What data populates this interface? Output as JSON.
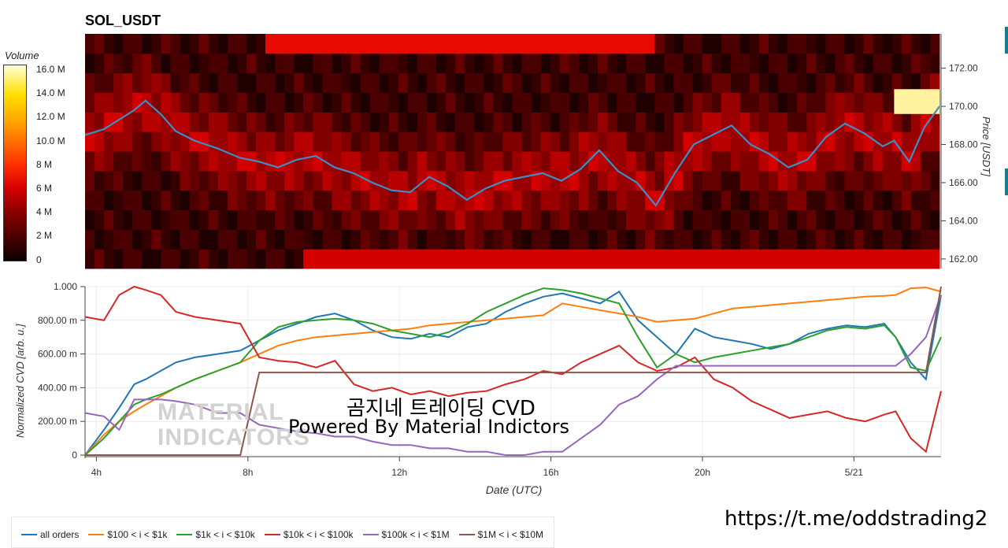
{
  "header": {
    "title": "SOL_USDT"
  },
  "colorbar": {
    "title": "Volume",
    "ticks": [
      "16.0 M",
      "14.0 M",
      "12.0 M",
      "10.0 M",
      "8 M",
      "6 M",
      "4 M",
      "2 M",
      "0"
    ]
  },
  "top_chart": {
    "y_axis_label": "Price [USDT]"
  },
  "bottom_chart": {
    "y_axis_label": "Normalized CVD [arb. u.]",
    "x_axis_label": "Date (UTC)"
  },
  "overlay": {
    "line1": "곰지네 트레이딩 CVD",
    "line2": "Powered By Material Indictors",
    "logo_line1": "MATERIAL",
    "logo_line2": "INDICATORS"
  },
  "footer": {
    "url": "https://t.me/oddstrading2"
  },
  "colors": {
    "all": "#1f77b4",
    "s100": "#ff7f0e",
    "s1k": "#2ca02c",
    "s10k": "#d62728",
    "s100k": "#9467bd",
    "s1m": "#8c564b"
  },
  "chart_data": [
    {
      "type": "heatmap",
      "title": "SOL_USDT",
      "ylabel": "Price [USDT]",
      "yticks": [
        "162.00",
        "164.00",
        "166.00",
        "168.00",
        "170.00",
        "172.00"
      ],
      "ylim": [
        161.5,
        173.8
      ],
      "colorbar_title": "Volume",
      "colorbar_range": [
        0,
        16
      ],
      "series": [
        {
          "name": "price",
          "x": [
            3.7,
            4.2,
            4.6,
            5.0,
            5.3,
            5.7,
            6.1,
            6.6,
            7.2,
            7.8,
            8.3,
            8.8,
            9.3,
            9.8,
            10.3,
            10.8,
            11.3,
            11.8,
            12.3,
            12.8,
            13.3,
            13.8,
            14.3,
            14.8,
            15.3,
            15.8,
            16.3,
            16.8,
            17.3,
            17.8,
            18.3,
            18.8,
            19.3,
            19.8,
            20.3,
            20.8,
            21.3,
            21.8,
            22.3,
            22.8,
            23.3,
            23.8,
            24.3,
            24.8,
            25.1,
            25.5,
            25.9,
            26.3
          ],
          "y": [
            168.5,
            168.8,
            169.3,
            169.8,
            170.3,
            169.6,
            168.7,
            168.2,
            167.8,
            167.3,
            167.1,
            166.8,
            167.2,
            167.4,
            166.8,
            166.5,
            166.0,
            165.6,
            165.5,
            166.3,
            165.8,
            165.1,
            165.7,
            166.1,
            166.3,
            166.5,
            166.1,
            166.7,
            167.7,
            166.6,
            166.0,
            164.8,
            166.5,
            168.0,
            168.5,
            169.0,
            168.0,
            167.5,
            166.8,
            167.2,
            168.4,
            169.1,
            168.6,
            167.9,
            168.2,
            167.1,
            168.9,
            170.0
          ]
        }
      ]
    },
    {
      "type": "line",
      "xlabel": "Date (UTC)",
      "ylabel": "Normalized CVD [arb. u.]",
      "xticks": [
        "4h",
        "8h",
        "12h",
        "16h",
        "20h",
        "5/21"
      ],
      "xtick_values": [
        4,
        8,
        12,
        16,
        20,
        24
      ],
      "yticks": [
        "0",
        "200.00 m",
        "400.00 m",
        "600.00 m",
        "800.00 m",
        "1.000"
      ],
      "ylim": [
        0,
        1
      ],
      "x": [
        3.7,
        4.2,
        4.6,
        5.0,
        5.3,
        5.7,
        6.1,
        6.6,
        7.2,
        7.8,
        8.3,
        8.8,
        9.3,
        9.8,
        10.3,
        10.8,
        11.3,
        11.8,
        12.3,
        12.8,
        13.3,
        13.8,
        14.3,
        14.8,
        15.3,
        15.8,
        16.3,
        16.8,
        17.3,
        17.8,
        18.3,
        18.8,
        19.3,
        19.8,
        20.3,
        20.8,
        21.3,
        21.8,
        22.3,
        22.8,
        23.3,
        23.8,
        24.3,
        24.8,
        25.1,
        25.5,
        25.9,
        26.3
      ],
      "series": [
        {
          "name": "all orders",
          "values": [
            0.0,
            0.15,
            0.28,
            0.42,
            0.45,
            0.5,
            0.55,
            0.58,
            0.6,
            0.62,
            0.68,
            0.74,
            0.78,
            0.82,
            0.84,
            0.8,
            0.74,
            0.7,
            0.69,
            0.72,
            0.7,
            0.76,
            0.78,
            0.85,
            0.9,
            0.94,
            0.96,
            0.93,
            0.9,
            0.97,
            0.8,
            0.7,
            0.6,
            0.75,
            0.7,
            0.68,
            0.66,
            0.63,
            0.66,
            0.72,
            0.75,
            0.77,
            0.76,
            0.78,
            0.7,
            0.55,
            0.45,
            0.95
          ]
        },
        {
          "name": "$100 < i < $1k",
          "values": [
            0.0,
            0.12,
            0.2,
            0.26,
            0.3,
            0.35,
            0.4,
            0.45,
            0.5,
            0.55,
            0.6,
            0.65,
            0.68,
            0.7,
            0.71,
            0.72,
            0.73,
            0.74,
            0.75,
            0.77,
            0.78,
            0.79,
            0.8,
            0.81,
            0.82,
            0.83,
            0.9,
            0.88,
            0.86,
            0.84,
            0.82,
            0.79,
            0.8,
            0.81,
            0.84,
            0.87,
            0.88,
            0.89,
            0.9,
            0.91,
            0.92,
            0.93,
            0.94,
            0.945,
            0.95,
            0.99,
            0.995,
            0.97
          ]
        },
        {
          "name": "$1k < i < $10k",
          "values": [
            0.0,
            0.1,
            0.2,
            0.3,
            0.33,
            0.36,
            0.4,
            0.45,
            0.5,
            0.55,
            0.68,
            0.76,
            0.79,
            0.8,
            0.81,
            0.8,
            0.78,
            0.74,
            0.72,
            0.7,
            0.73,
            0.78,
            0.85,
            0.9,
            0.95,
            0.99,
            0.98,
            0.96,
            0.93,
            0.9,
            0.7,
            0.52,
            0.6,
            0.55,
            0.58,
            0.6,
            0.62,
            0.64,
            0.66,
            0.7,
            0.74,
            0.76,
            0.75,
            0.77,
            0.7,
            0.52,
            0.5,
            0.7
          ]
        },
        {
          "name": "$10k < i < $100k",
          "values": [
            0.82,
            0.8,
            0.95,
            1.0,
            0.98,
            0.95,
            0.85,
            0.82,
            0.8,
            0.78,
            0.58,
            0.56,
            0.55,
            0.52,
            0.56,
            0.42,
            0.38,
            0.4,
            0.36,
            0.38,
            0.35,
            0.37,
            0.38,
            0.42,
            0.45,
            0.5,
            0.48,
            0.55,
            0.6,
            0.65,
            0.55,
            0.5,
            0.52,
            0.58,
            0.45,
            0.4,
            0.32,
            0.27,
            0.22,
            0.24,
            0.26,
            0.22,
            0.2,
            0.24,
            0.26,
            0.1,
            0.02,
            0.38
          ]
        },
        {
          "name": "$100k < i < $1M",
          "values": [
            0.25,
            0.23,
            0.15,
            0.33,
            0.33,
            0.33,
            0.32,
            0.3,
            0.25,
            0.25,
            0.18,
            0.16,
            0.14,
            0.13,
            0.11,
            0.11,
            0.08,
            0.06,
            0.06,
            0.04,
            0.04,
            0.02,
            0.02,
            0.0,
            0.0,
            0.02,
            0.02,
            0.1,
            0.18,
            0.3,
            0.35,
            0.45,
            0.53,
            0.53,
            0.53,
            0.53,
            0.53,
            0.53,
            0.53,
            0.53,
            0.53,
            0.53,
            0.53,
            0.53,
            0.53,
            0.6,
            0.7,
            0.95
          ]
        },
        {
          "name": "$1M < i < $10M",
          "values": [
            0.0,
            0.0,
            0.0,
            0.0,
            0.0,
            0.0,
            0.0,
            0.0,
            0.0,
            0.0,
            0.49,
            0.49,
            0.49,
            0.49,
            0.49,
            0.49,
            0.49,
            0.49,
            0.49,
            0.49,
            0.49,
            0.49,
            0.49,
            0.49,
            0.49,
            0.49,
            0.49,
            0.49,
            0.49,
            0.49,
            0.49,
            0.49,
            0.49,
            0.49,
            0.49,
            0.49,
            0.49,
            0.49,
            0.49,
            0.49,
            0.49,
            0.49,
            0.49,
            0.49,
            0.49,
            0.49,
            0.49,
            1.0
          ]
        }
      ],
      "legend_position": "bottom-left"
    }
  ]
}
